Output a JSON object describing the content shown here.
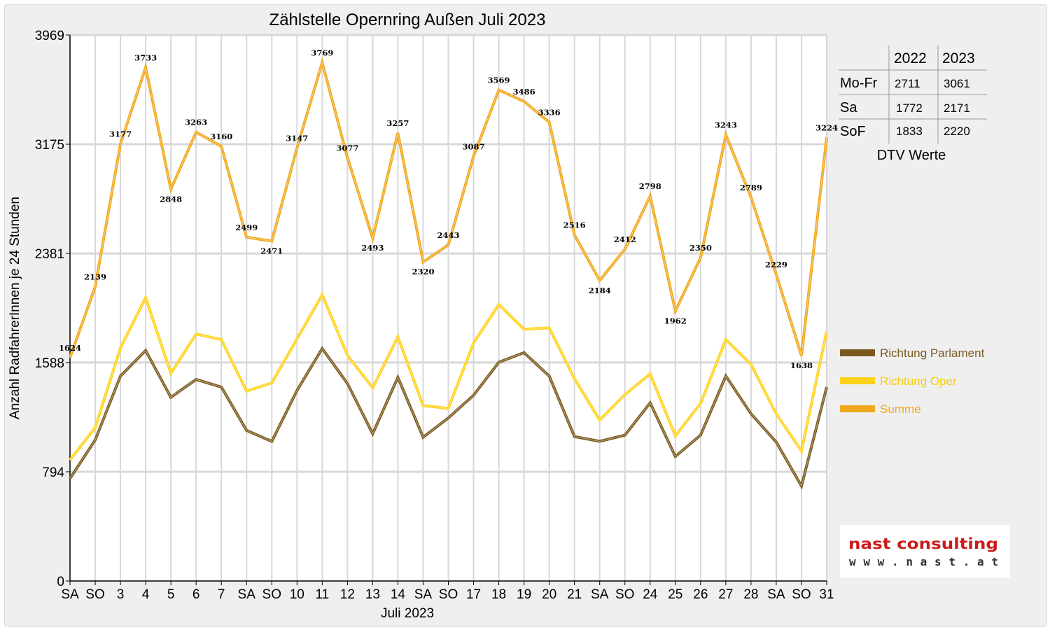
{
  "chart_data": {
    "type": "line",
    "title": "Zählstelle Opernring Außen Juli 2023",
    "xlabel": "Juli 2023",
    "ylabel": "Anzahl RadfahrerInnen je 24 Stunden",
    "ylim": [
      0,
      3969
    ],
    "yticks": [
      "0",
      "794",
      "1588",
      "2381",
      "3175",
      "3969"
    ],
    "grid": true,
    "legend_position": "right",
    "categories": [
      "SA",
      "SO",
      "3",
      "4",
      "5",
      "6",
      "7",
      "SA",
      "SO",
      "10",
      "11",
      "12",
      "13",
      "14",
      "SA",
      "SO",
      "17",
      "18",
      "19",
      "20",
      "21",
      "SA",
      "SO",
      "24",
      "25",
      "26",
      "27",
      "28",
      "SA",
      "SO",
      "31"
    ],
    "weekend_color": "#e00000",
    "series": [
      {
        "name": "Richtung Parlament",
        "color": "#7a5a1e",
        "values": [
          745,
          1025,
          1490,
          1675,
          1335,
          1465,
          1410,
          1095,
          1015,
          1385,
          1690,
          1435,
          1070,
          1480,
          1045,
          1185,
          1350,
          1590,
          1660,
          1490,
          1050,
          1015,
          1060,
          1295,
          905,
          1060,
          1490,
          1215,
          1010,
          690,
          1410
        ]
      },
      {
        "name": "Richtung Oper",
        "color": "#ffd21a",
        "values": [
          880,
          1115,
          1695,
          2060,
          1510,
          1795,
          1755,
          1380,
          1440,
          1760,
          2080,
          1640,
          1405,
          1775,
          1275,
          1255,
          1730,
          2010,
          1830,
          1840,
          1470,
          1170,
          1355,
          1505,
          1055,
          1290,
          1755,
          1575,
          1215,
          945,
          1815
        ]
      },
      {
        "name": "Summe",
        "color": "#f0a81c",
        "values": [
          1624,
          2139,
          3177,
          3733,
          2848,
          3263,
          3160,
          2499,
          2471,
          3147,
          3769,
          3077,
          2493,
          3257,
          2320,
          2443,
          3087,
          3569,
          3486,
          3336,
          2516,
          2184,
          2412,
          2798,
          1962,
          2350,
          3243,
          2789,
          2229,
          1638,
          3224
        ],
        "data_labels": [
          "1624",
          "2139",
          "3177",
          "3733",
          "2848",
          "3263",
          "3160",
          "2499",
          "2471",
          "3147",
          "3769",
          "3077",
          "2493",
          "3257",
          "2320",
          "2443",
          "3087",
          "3569",
          "3486",
          "3336",
          "2516",
          "2184",
          "2412",
          "2798",
          "1962",
          "2350",
          "3243",
          "2789",
          "2229",
          "1638",
          "3224"
        ]
      }
    ]
  },
  "dtv_table": {
    "columns": [
      "2022",
      "2023"
    ],
    "rows": [
      {
        "label": "Mo-Fr",
        "v2022": "2711",
        "v2023": "3061"
      },
      {
        "label": "Sa",
        "v2022": "1772",
        "v2023": "2171"
      },
      {
        "label": "SoF",
        "v2022": "1833",
        "v2023": "2220"
      }
    ],
    "caption": "DTV Werte"
  },
  "logo": {
    "line1": "nast consulting",
    "line2": "www.nast.at"
  }
}
